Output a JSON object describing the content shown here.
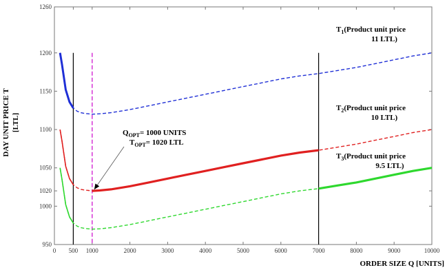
{
  "chart_data": {
    "type": "line",
    "title": "",
    "xlabel": "ORDER SIZE Q [UNITS]",
    "ylabel_line1": "DAY UNIT PRICE T",
    "ylabel_line2": "[LTL]",
    "xlim": [
      0,
      10000
    ],
    "ylim": [
      950,
      1260
    ],
    "x_ticks": [
      0,
      500,
      1000,
      2000,
      3000,
      4000,
      5000,
      6000,
      7000,
      8000,
      9000,
      10000
    ],
    "x_tick_labels": [
      "0",
      "500",
      "1000",
      "2000",
      "3000",
      "4000",
      "5000",
      "6000",
      "7000",
      "8000",
      "9000",
      "10000"
    ],
    "y_ticks": [
      950,
      1000,
      1020,
      1050,
      1100,
      1150,
      1200,
      1260
    ],
    "y_tick_labels": [
      "950",
      "1000",
      "1020",
      "1050",
      "1100",
      "1150",
      "1200",
      "1260"
    ],
    "grid": false,
    "vertical_lines": [
      {
        "x": 500,
        "color": "#000000",
        "style": "solid"
      },
      {
        "x": 1000,
        "color": "#d633d6",
        "style": "dashed"
      },
      {
        "x": 7000,
        "color": "#000000",
        "style": "solid"
      }
    ],
    "x": [
      150,
      200,
      300,
      400,
      500,
      600,
      700,
      800,
      900,
      1000,
      1200,
      1500,
      2000,
      2500,
      3000,
      3500,
      4000,
      4500,
      5000,
      5500,
      6000,
      6500,
      7000,
      7500,
      8000,
      8500,
      9000,
      9500,
      10000
    ],
    "series": [
      {
        "name": "T1",
        "color": "#1f2fd6",
        "label_line1_prefix": "T",
        "label_line1_sub": "1",
        "label_line1_rest": "(Product unit price",
        "label_line2": "11 LTL)",
        "values": [
          1200,
          1185,
          1152,
          1136,
          1128,
          1124,
          1122,
          1121,
          1120.5,
          1120,
          1120.5,
          1122,
          1126,
          1131,
          1136,
          1141,
          1146,
          1151,
          1156,
          1161,
          1166,
          1170,
          1173,
          1177,
          1181,
          1186,
          1191,
          1196,
          1200
        ]
      },
      {
        "name": "T2",
        "color": "#e02020",
        "label_line1_prefix": "T",
        "label_line1_sub": "2",
        "label_line1_rest": "(Product unit price",
        "label_line2": "10 LTL)",
        "values": [
          1100,
          1085,
          1052,
          1036,
          1028,
          1024,
          1022,
          1021,
          1020.5,
          1020,
          1020.5,
          1022,
          1026,
          1031,
          1036,
          1041,
          1046,
          1051,
          1056,
          1061,
          1066,
          1070,
          1073,
          1077,
          1081,
          1086,
          1091,
          1096,
          1100
        ]
      },
      {
        "name": "T3",
        "color": "#2ed82e",
        "label_line1_prefix": "T",
        "label_line1_sub": "3",
        "label_line1_rest": "(Product unit price",
        "label_line2": "9.5 LTL)",
        "values": [
          1050,
          1035,
          1002,
          986,
          978,
          974,
          972,
          971,
          970.5,
          970,
          970.5,
          972,
          976,
          981,
          986,
          991,
          996,
          1001,
          1006,
          1011,
          1016,
          1020,
          1023,
          1027,
          1031,
          1036,
          1041,
          1046,
          1050
        ]
      }
    ],
    "annotation": {
      "q_prefix": "Q",
      "q_sub": "OPT",
      "q_rest": "= 1000 UNITS",
      "t_prefix": "T",
      "t_sub": "OPT",
      "t_rest": "= 1020 LTL",
      "point_x": 1000,
      "point_y": 1020
    }
  }
}
